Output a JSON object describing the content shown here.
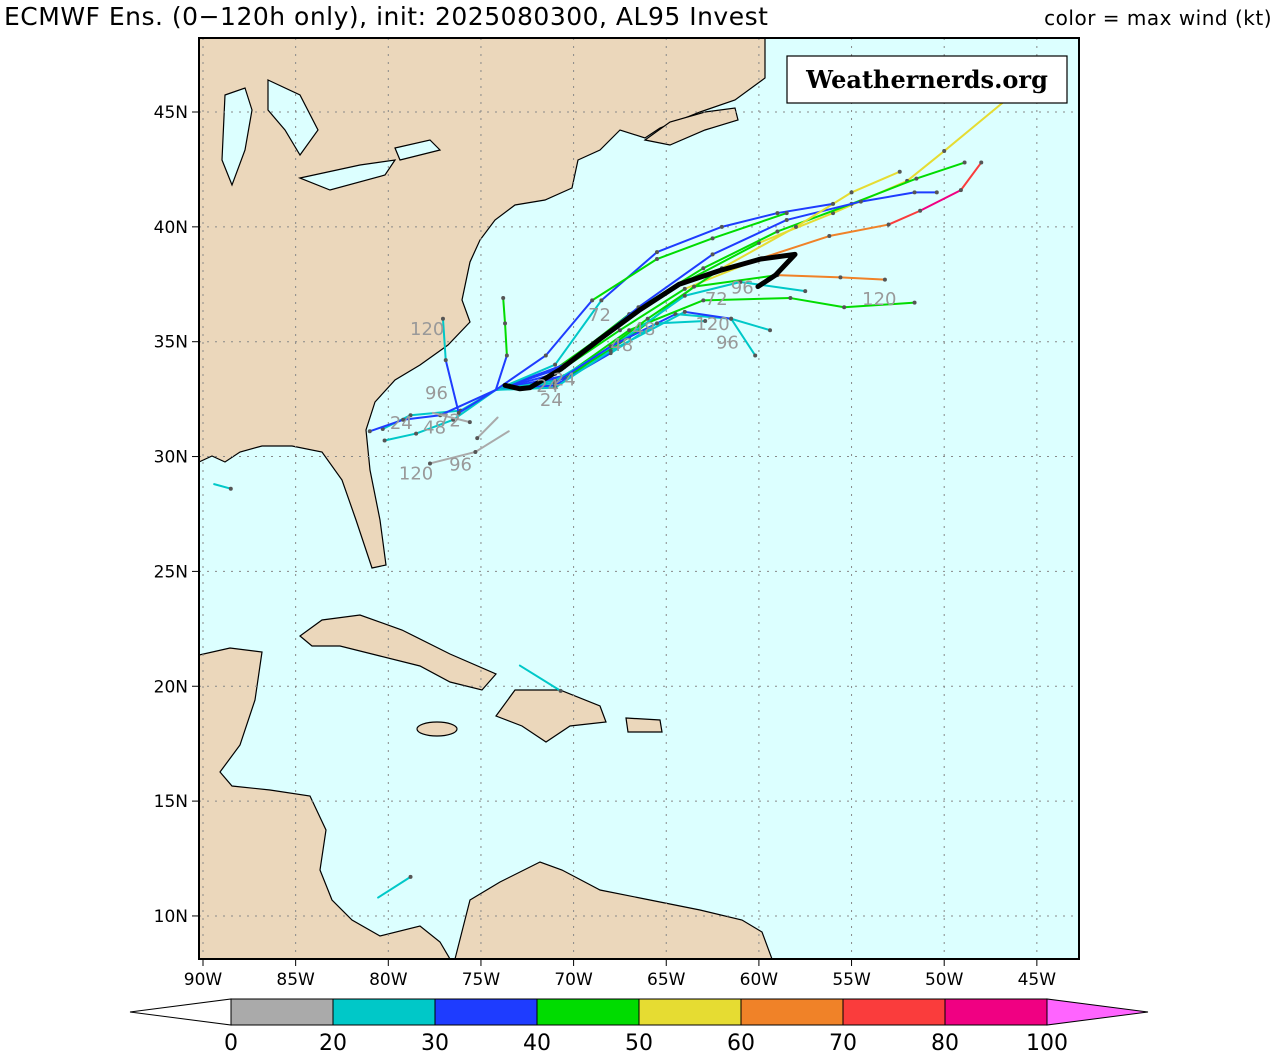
{
  "header": {
    "title": "ECMWF Ens. (0−120h only), init: 2025080300, AL95 Invest",
    "color_legend": "color = max wind (kt)"
  },
  "watermark": "Weathernerds.org",
  "chart_data": {
    "type": "map-tracks",
    "projection": "lat-lon",
    "lon_range": [
      -90.2,
      -42.5
    ],
    "lat_range": [
      8.2,
      48.3
    ],
    "grid": true,
    "x_ticks": [
      "90W",
      "85W",
      "80W",
      "75W",
      "70W",
      "65W",
      "60W",
      "55W",
      "50W",
      "45W"
    ],
    "x_tick_values": [
      -90,
      -85,
      -80,
      -75,
      -70,
      -65,
      -60,
      -55,
      -50,
      -45
    ],
    "y_ticks": [
      "10N",
      "15N",
      "20N",
      "25N",
      "30N",
      "35N",
      "40N",
      "45N"
    ],
    "y_tick_values": [
      10,
      15,
      20,
      25,
      30,
      35,
      40,
      45
    ],
    "colorbar": {
      "levels": [
        0,
        20,
        30,
        40,
        50,
        60,
        70,
        80,
        100
      ],
      "labels": [
        "0",
        "20",
        "30",
        "40",
        "50",
        "60",
        "70",
        "80",
        "100"
      ],
      "colors": [
        "#aaaaaa",
        "#00c8c8",
        "#1e3cff",
        "#00dc00",
        "#e6dc32",
        "#f08228",
        "#fa3c3c",
        "#f00082"
      ],
      "under_color": "#ffffff",
      "over_color": "#ff64ff"
    },
    "colors": {
      "ocean": "#dcffff",
      "land": "#ebd7bb",
      "mean_track": "#000000",
      "hour_label": "#999999"
    },
    "mean_track": {
      "lon": [
        -73.7,
        -72.9,
        -72.35,
        -70.7,
        -68.6,
        -66.4,
        -64.3,
        -62.1,
        -59.9,
        -58.05,
        -59.1,
        -60.05
      ],
      "lat": [
        33.1,
        32.95,
        33.0,
        33.8,
        35.1,
        36.4,
        37.5,
        38.1,
        38.6,
        38.8,
        37.9,
        37.4
      ]
    },
    "tracks": [
      {
        "lon": [
          -74.2,
          -71,
          -67.5,
          -64,
          -60,
          -56,
          -52,
          -50,
          -46.7
        ],
        "lat": [
          32.9,
          33.8,
          35.8,
          37.6,
          39.3,
          40.6,
          42.0,
          43.3,
          45.5
        ],
        "wind": [
          30,
          35,
          42,
          45,
          48,
          52,
          55,
          58,
          58
        ]
      },
      {
        "lon": [
          -74.2,
          -71,
          -67.5,
          -64,
          -60,
          -56.2,
          -53,
          -51.3,
          -49.1,
          -48.0
        ],
        "lat": [
          32.9,
          33.6,
          35.5,
          37.3,
          38.6,
          39.6,
          40.1,
          40.7,
          41.6,
          42.8
        ],
        "wind": [
          30,
          35,
          40,
          45,
          55,
          62,
          66,
          75,
          80,
          75
        ]
      },
      {
        "lon": [
          -74.2,
          -70.5,
          -67,
          -63,
          -59,
          -55,
          -51.5,
          -48.9
        ],
        "lat": [
          32.9,
          34.0,
          36.2,
          38.2,
          39.8,
          41.0,
          42.1,
          42.8
        ],
        "wind": [
          30,
          38,
          42,
          45,
          45,
          46,
          46,
          46
        ]
      },
      {
        "lon": [
          -74.2,
          -70.5,
          -66.5,
          -62.5,
          -58.5,
          -54.5,
          -51.6,
          -50.4
        ],
        "lat": [
          32.9,
          33.9,
          36.5,
          38.8,
          40.3,
          41.1,
          41.5,
          41.5
        ],
        "wind": [
          30,
          32,
          35,
          35,
          36,
          38,
          36,
          36
        ]
      },
      {
        "lon": [
          -74.2,
          -70,
          -66,
          -62,
          -58,
          -55,
          -52.4
        ],
        "lat": [
          32.9,
          33.6,
          36.0,
          38.2,
          40.0,
          41.5,
          42.4
        ],
        "wind": [
          30,
          35,
          45,
          46,
          50,
          55,
          55
        ]
      },
      {
        "lon": [
          -74.2,
          -70.5,
          -67,
          -63,
          -58.3,
          -55.4,
          -51.6
        ],
        "lat": [
          32.9,
          33.5,
          35.5,
          36.8,
          36.9,
          36.5,
          36.7
        ],
        "wind": [
          30,
          35,
          42,
          45,
          45,
          45,
          45
        ]
      },
      {
        "lon": [
          -74.2,
          -70.5,
          -67,
          -63.5,
          -59,
          -55.6,
          -53.2
        ],
        "lat": [
          32.9,
          33.4,
          35.2,
          37.4,
          37.9,
          37.8,
          37.7
        ],
        "wind": [
          30,
          38,
          45,
          46,
          45,
          62,
          65
        ]
      },
      {
        "lon": [
          -74.2,
          -71,
          -67.5,
          -64,
          -61,
          -57.5
        ],
        "lat": [
          32.9,
          33.3,
          35.0,
          37.0,
          37.6,
          37.2
        ],
        "wind": [
          30,
          25,
          25,
          25,
          25,
          25
        ]
      },
      {
        "lon": [
          -74.2,
          -71,
          -68,
          -64.5,
          -61.5,
          -59.4
        ],
        "lat": [
          32.9,
          33.2,
          34.8,
          36.2,
          36.0,
          35.5
        ],
        "wind": [
          30,
          25,
          30,
          35,
          28,
          25
        ]
      },
      {
        "lon": [
          -74.2,
          -71,
          -68,
          -65.5,
          -62.9
        ],
        "lat": [
          32.9,
          33.1,
          34.5,
          35.8,
          35.9
        ],
        "wind": [
          30,
          30,
          35,
          28,
          25
        ]
      },
      {
        "lon": [
          -74.2,
          -71,
          -68,
          -64,
          -61.5,
          -60.2
        ],
        "lat": [
          32.9,
          33.0,
          34.6,
          36.3,
          36.0,
          34.4
        ],
        "wind": [
          30,
          25,
          25,
          25,
          35,
          25
        ]
      },
      {
        "lon": [
          -74.2,
          -71,
          -68.5,
          -65.5,
          -62,
          -59,
          -56
        ],
        "lat": [
          32.9,
          34.0,
          36.8,
          38.9,
          40.0,
          40.6,
          41.0
        ],
        "wind": [
          30,
          25,
          25,
          30,
          35,
          35,
          35
        ]
      },
      {
        "lon": [
          -74.2,
          -71.5,
          -69,
          -65.5,
          -62.5,
          -58.5
        ],
        "lat": [
          32.9,
          34.4,
          36.8,
          38.6,
          39.5,
          40.6
        ],
        "wind": [
          30,
          35,
          35,
          45,
          46,
          45
        ]
      },
      {
        "lon": [
          -74.2,
          -76.1,
          -78.8,
          -80.3
        ],
        "lat": [
          32.9,
          32.0,
          31.8,
          31.2
        ],
        "wind": [
          25,
          25,
          25,
          25
        ]
      },
      {
        "lon": [
          -74.2,
          -76.5,
          -78.5,
          -80.2
        ],
        "lat": [
          32.9,
          31.6,
          31.0,
          30.7
        ],
        "wind": [
          25,
          25,
          25,
          25
        ]
      },
      {
        "lon": [
          -74.2,
          -76.2,
          -76.9,
          -77.05
        ],
        "lat": [
          32.9,
          31.9,
          34.2,
          36.0
        ],
        "wind": [
          25,
          35,
          35,
          25
        ]
      },
      {
        "lon": [
          -74.2,
          -77.2,
          -79.2,
          -81.0
        ],
        "lat": [
          32.9,
          31.8,
          31.6,
          31.1
        ],
        "wind": [
          30,
          35,
          30,
          35
        ]
      },
      {
        "lon": [
          -74.2,
          -73.6,
          -73.7,
          -73.8
        ],
        "lat": [
          32.9,
          34.4,
          35.8,
          36.9
        ],
        "wind": [
          35,
          35,
          45,
          45
        ]
      },
      {
        "lon": [
          -73.5,
          -75.3,
          -77.75
        ],
        "lat": [
          31.1,
          30.2,
          29.7
        ],
        "wind": [
          15,
          15,
          15
        ]
      },
      {
        "lon": [
          -74.1,
          -75.2
        ],
        "lat": [
          31.7,
          30.8
        ],
        "wind": [
          15,
          15
        ]
      },
      {
        "lon": [
          -77.6,
          -75.6
        ],
        "lat": [
          31.9,
          31.5
        ],
        "wind": [
          15,
          15
        ]
      },
      {
        "lon": [
          -72.9,
          -70.7
        ],
        "lat": [
          20.9,
          19.8
        ],
        "wind": [
          25,
          25
        ]
      },
      {
        "lon": [
          -89.4,
          -88.5
        ],
        "lat": [
          28.8,
          28.6
        ],
        "wind": [
          25,
          25
        ]
      },
      {
        "lon": [
          -80.55,
          -78.8
        ],
        "lat": [
          10.8,
          11.7
        ],
        "wind": [
          25,
          25
        ]
      }
    ],
    "hour_labels": [
      {
        "text": "120",
        "lon": -77.9,
        "lat": 35.3
      },
      {
        "text": "96",
        "lon": -77.4,
        "lat": 32.5
      },
      {
        "text": "24",
        "lon": -79.3,
        "lat": 31.2
      },
      {
        "text": "72",
        "lon": -76.7,
        "lat": 31.3
      },
      {
        "text": "48",
        "lon": -77.5,
        "lat": 31.0
      },
      {
        "text": "120",
        "lon": -78.5,
        "lat": 29.0
      },
      {
        "text": "96",
        "lon": -76.1,
        "lat": 29.4
      },
      {
        "text": "24",
        "lon": -71.2,
        "lat": 32.2
      },
      {
        "text": "24",
        "lon": -71.4,
        "lat": 32.8
      },
      {
        "text": "24",
        "lon": -70.5,
        "lat": 33.1
      },
      {
        "text": "72",
        "lon": -68.6,
        "lat": 35.9
      },
      {
        "text": "48",
        "lon": -67.4,
        "lat": 34.6
      },
      {
        "text": "48",
        "lon": -66.2,
        "lat": 35.3
      },
      {
        "text": "72",
        "lon": -62.3,
        "lat": 36.6
      },
      {
        "text": "96",
        "lon": -60.9,
        "lat": 37.1
      },
      {
        "text": "120",
        "lon": -53.5,
        "lat": 36.6
      },
      {
        "text": "120",
        "lon": -62.5,
        "lat": 35.5
      },
      {
        "text": "96",
        "lon": -61.7,
        "lat": 34.7
      }
    ]
  }
}
